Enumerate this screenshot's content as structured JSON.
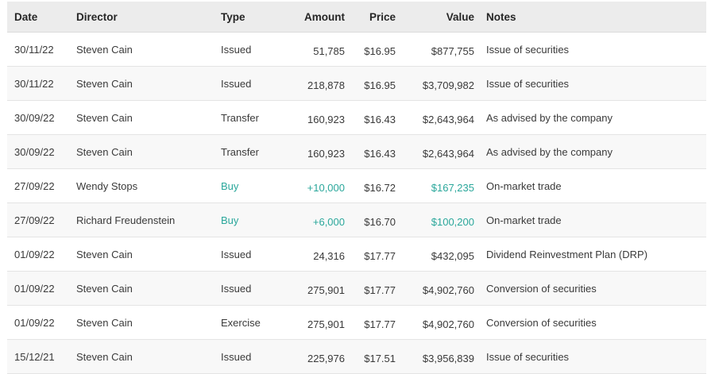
{
  "table": {
    "accent_teal": "#2aa79b",
    "columns": [
      {
        "key": "date",
        "label": "Date",
        "align": "left",
        "numeric": false
      },
      {
        "key": "director",
        "label": "Director",
        "align": "left",
        "numeric": false
      },
      {
        "key": "type",
        "label": "Type",
        "align": "left",
        "numeric": false
      },
      {
        "key": "amount",
        "label": "Amount",
        "align": "right",
        "numeric": true
      },
      {
        "key": "price",
        "label": "Price",
        "align": "right",
        "numeric": true
      },
      {
        "key": "value",
        "label": "Value",
        "align": "right",
        "numeric": true
      },
      {
        "key": "notes",
        "label": "Notes",
        "align": "left",
        "numeric": false
      }
    ],
    "highlight_keys": [
      "type",
      "amount",
      "value"
    ],
    "rows": [
      {
        "date": "30/11/22",
        "director": "Steven Cain",
        "type": "Issued",
        "amount": "51,785",
        "price": "$16.95",
        "value": "$877,755",
        "notes": "Issue of securities",
        "highlight": false
      },
      {
        "date": "30/11/22",
        "director": "Steven Cain",
        "type": "Issued",
        "amount": "218,878",
        "price": "$16.95",
        "value": "$3,709,982",
        "notes": "Issue of securities",
        "highlight": false
      },
      {
        "date": "30/09/22",
        "director": "Steven Cain",
        "type": "Transfer",
        "amount": "160,923",
        "price": "$16.43",
        "value": "$2,643,964",
        "notes": "As advised by the company",
        "highlight": false
      },
      {
        "date": "30/09/22",
        "director": "Steven Cain",
        "type": "Transfer",
        "amount": "160,923",
        "price": "$16.43",
        "value": "$2,643,964",
        "notes": "As advised by the company",
        "highlight": false
      },
      {
        "date": "27/09/22",
        "director": "Wendy Stops",
        "type": "Buy",
        "amount": "+10,000",
        "price": "$16.72",
        "value": "$167,235",
        "notes": "On-market trade",
        "highlight": true
      },
      {
        "date": "27/09/22",
        "director": "Richard Freudenstein",
        "type": "Buy",
        "amount": "+6,000",
        "price": "$16.70",
        "value": "$100,200",
        "notes": "On-market trade",
        "highlight": true
      },
      {
        "date": "01/09/22",
        "director": "Steven Cain",
        "type": "Issued",
        "amount": "24,316",
        "price": "$17.77",
        "value": "$432,095",
        "notes": "Dividend Reinvestment Plan (DRP)",
        "highlight": false
      },
      {
        "date": "01/09/22",
        "director": "Steven Cain",
        "type": "Issued",
        "amount": "275,901",
        "price": "$17.77",
        "value": "$4,902,760",
        "notes": "Conversion of securities",
        "highlight": false
      },
      {
        "date": "01/09/22",
        "director": "Steven Cain",
        "type": "Exercise",
        "amount": "275,901",
        "price": "$17.77",
        "value": "$4,902,760",
        "notes": "Conversion of securities",
        "highlight": false
      },
      {
        "date": "15/12/21",
        "director": "Steven Cain",
        "type": "Issued",
        "amount": "225,976",
        "price": "$17.51",
        "value": "$3,956,839",
        "notes": "Issue of securities",
        "highlight": false
      }
    ]
  }
}
